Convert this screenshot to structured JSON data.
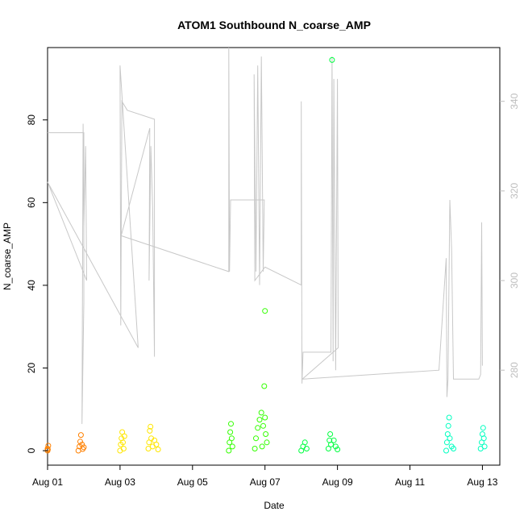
{
  "chart_data": {
    "type": "scatter",
    "title": "ATOM1 Southbound N_coarse_AMP",
    "xlabel": "Date",
    "ylabel": "N_coarse_AMP",
    "xlim": [
      0.0,
      12.48
    ],
    "ylim": [
      -3.5,
      97.5
    ],
    "right_axis": {
      "ylim": [
        258.8,
        352.0
      ],
      "ticks": [
        280,
        300,
        320,
        340
      ],
      "tick_labels": [
        "280",
        "300",
        "320",
        "340"
      ],
      "color": "#bdbdbd"
    },
    "x_ticks": [
      0,
      2,
      4,
      6,
      8,
      10,
      12
    ],
    "x_tick_labels": [
      "Aug 01",
      "Aug 03",
      "Aug 05",
      "Aug 07",
      "Aug 09",
      "Aug 11",
      "Aug 13"
    ],
    "y_ticks": [
      0,
      20,
      40,
      60,
      80
    ],
    "y_tick_labels": [
      "0",
      "20",
      "40",
      "60",
      "80"
    ],
    "grid": false,
    "series": [
      {
        "color": "#ff8000",
        "points": [
          [
            0.0,
            0.0
          ],
          [
            0.0,
            0.5
          ],
          [
            0.02,
            1.2
          ],
          [
            0.01,
            0.3
          ],
          [
            0.85,
            0.0
          ],
          [
            0.88,
            1.0
          ],
          [
            0.9,
            2.2
          ],
          [
            0.92,
            3.8
          ],
          [
            0.95,
            1.5
          ],
          [
            0.97,
            0.4
          ],
          [
            1.0,
            0.8
          ]
        ]
      },
      {
        "color": "#ffe600",
        "points": [
          [
            2.0,
            0.0
          ],
          [
            2.02,
            1.5
          ],
          [
            2.04,
            3.0
          ],
          [
            2.06,
            4.5
          ],
          [
            2.08,
            2.0
          ],
          [
            2.1,
            0.5
          ],
          [
            2.12,
            3.5
          ],
          [
            2.78,
            0.5
          ],
          [
            2.8,
            2.0
          ],
          [
            2.82,
            4.8
          ],
          [
            2.84,
            5.8
          ],
          [
            2.86,
            3.0
          ],
          [
            2.9,
            1.0
          ],
          [
            2.95,
            2.5
          ],
          [
            3.0,
            1.5
          ],
          [
            3.05,
            0.3
          ]
        ]
      },
      {
        "color": "#33ff00",
        "points": [
          [
            5.0,
            0.0
          ],
          [
            5.02,
            2.0
          ],
          [
            5.04,
            4.5
          ],
          [
            5.06,
            6.5
          ],
          [
            5.08,
            3.0
          ],
          [
            5.1,
            1.0
          ],
          [
            5.72,
            0.5
          ],
          [
            5.75,
            3.0
          ],
          [
            5.8,
            5.5
          ],
          [
            5.85,
            7.5
          ],
          [
            5.9,
            9.2
          ],
          [
            5.95,
            6.0
          ],
          [
            6.0,
            33.8
          ],
          [
            5.98,
            15.6
          ],
          [
            6.02,
            4.0
          ],
          [
            6.05,
            2.0
          ],
          [
            6.0,
            8.0
          ],
          [
            5.92,
            1.0
          ]
        ]
      },
      {
        "color": "#00ff40",
        "points": [
          [
            7.0,
            0.0
          ],
          [
            7.05,
            1.0
          ],
          [
            7.1,
            2.0
          ],
          [
            7.15,
            0.5
          ],
          [
            7.75,
            0.5
          ],
          [
            7.78,
            2.5
          ],
          [
            7.8,
            4.0
          ],
          [
            7.82,
            1.5
          ],
          [
            7.85,
            94.5
          ],
          [
            7.9,
            2.5
          ],
          [
            7.95,
            1.0
          ],
          [
            8.0,
            0.3
          ]
        ]
      },
      {
        "color": "#00ffc0",
        "points": [
          [
            11.0,
            0.0
          ],
          [
            11.02,
            2.0
          ],
          [
            11.04,
            4.0
          ],
          [
            11.06,
            6.0
          ],
          [
            11.08,
            8.0
          ],
          [
            11.1,
            3.0
          ],
          [
            11.15,
            1.0
          ],
          [
            11.2,
            0.5
          ],
          [
            11.95,
            0.5
          ],
          [
            11.98,
            2.0
          ],
          [
            12.0,
            4.0
          ],
          [
            12.02,
            5.5
          ],
          [
            12.04,
            3.0
          ],
          [
            12.06,
            1.0
          ]
        ]
      }
    ],
    "line_series": {
      "color": "#c8c8c8",
      "axis": "right",
      "points": [
        [
          0.0,
          333
        ],
        [
          1.0,
          333
        ],
        [
          1.0,
          295
        ],
        [
          0.95,
          268
        ],
        [
          0.98,
          335
        ],
        [
          1.0,
          312
        ],
        [
          1.05,
          330
        ],
        [
          1.08,
          300
        ],
        [
          0.0,
          322
        ],
        [
          2.5,
          285
        ],
        [
          2.0,
          348
        ],
        [
          2.02,
          290
        ],
        [
          2.05,
          340
        ],
        [
          2.2,
          338
        ],
        [
          2.95,
          336
        ],
        [
          2.95,
          283
        ],
        [
          2.9,
          316
        ],
        [
          2.85,
          330
        ],
        [
          2.8,
          300
        ],
        [
          2.82,
          334
        ],
        [
          2.03,
          310
        ],
        [
          5.0,
          302
        ],
        [
          5.0,
          352
        ],
        [
          5.02,
          302
        ],
        [
          5.05,
          318
        ],
        [
          5.5,
          318
        ],
        [
          5.98,
          318
        ],
        [
          5.95,
          302
        ],
        [
          5.9,
          350
        ],
        [
          5.85,
          299
        ],
        [
          5.8,
          348
        ],
        [
          5.75,
          302
        ],
        [
          5.7,
          346
        ],
        [
          5.72,
          300
        ],
        [
          6.0,
          303
        ],
        [
          7.0,
          299
        ],
        [
          7.0,
          340
        ],
        [
          7.02,
          277
        ],
        [
          7.05,
          284
        ],
        [
          7.6,
          284
        ],
        [
          7.82,
          284
        ],
        [
          7.85,
          350
        ],
        [
          7.88,
          282
        ],
        [
          7.9,
          345
        ],
        [
          7.95,
          280
        ],
        [
          8.0,
          345
        ],
        [
          8.02,
          285
        ],
        [
          7.03,
          278
        ],
        [
          10.8,
          280
        ],
        [
          11.0,
          305
        ],
        [
          11.02,
          274
        ],
        [
          11.05,
          278
        ],
        [
          11.1,
          318
        ],
        [
          11.15,
          307
        ],
        [
          11.2,
          278
        ],
        [
          11.9,
          278
        ],
        [
          11.95,
          279
        ],
        [
          11.98,
          313
        ],
        [
          12.0,
          281
        ]
      ]
    }
  }
}
